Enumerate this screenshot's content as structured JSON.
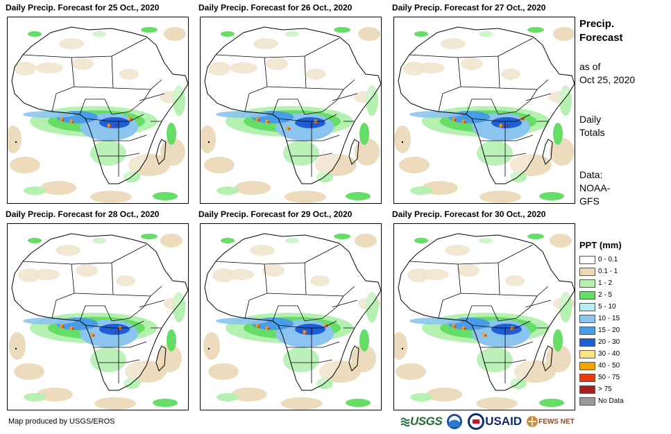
{
  "panels": [
    {
      "title": "Daily Precip. Forecast for 25 Oct., 2020"
    },
    {
      "title": "Daily Precip. Forecast for 26 Oct., 2020"
    },
    {
      "title": "Daily Precip. Forecast for 27 Oct., 2020"
    },
    {
      "title": "Daily Precip. Forecast for 28 Oct., 2020"
    },
    {
      "title": "Daily Precip. Forecast for 29 Oct., 2020"
    },
    {
      "title": "Daily Precip. Forecast for 30 Oct., 2020"
    }
  ],
  "sidebar": {
    "title_line1": "Precip.",
    "title_line2": "Forecast",
    "asof_line1": "as of",
    "asof_line2": "Oct 25, 2020",
    "totals_line1": "Daily",
    "totals_line2": "Totals",
    "data_line1": "Data:",
    "data_line2": "NOAA-",
    "data_line3": "GFS"
  },
  "legend": {
    "title": "PPT (mm)",
    "items": [
      {
        "label": "0 - 0.1",
        "color": "#ffffff"
      },
      {
        "label": "0.1 - 1",
        "color": "#ead7b5"
      },
      {
        "label": "1 - 2",
        "color": "#b4f0b0"
      },
      {
        "label": "2 - 5",
        "color": "#66dd66"
      },
      {
        "label": "5 - 10",
        "color": "#b8ecf5"
      },
      {
        "label": "10 - 15",
        "color": "#8cc4f0"
      },
      {
        "label": "15 - 20",
        "color": "#4a9be8"
      },
      {
        "label": "20 - 30",
        "color": "#1e5fd8"
      },
      {
        "label": "30 - 40",
        "color": "#fce38a"
      },
      {
        "label": "40 - 50",
        "color": "#f5a400"
      },
      {
        "label": "50 - 75",
        "color": "#e83a10"
      },
      {
        "label": "> 75",
        "color": "#a81d1d"
      },
      {
        "label": "No Data",
        "color": "#9a9a9a"
      }
    ]
  },
  "footer": {
    "credit": "Map produced by USGS/EROS",
    "logo_usgs": "USGS",
    "logo_usaid": "USAID",
    "logo_fews": "FEWS NET"
  }
}
